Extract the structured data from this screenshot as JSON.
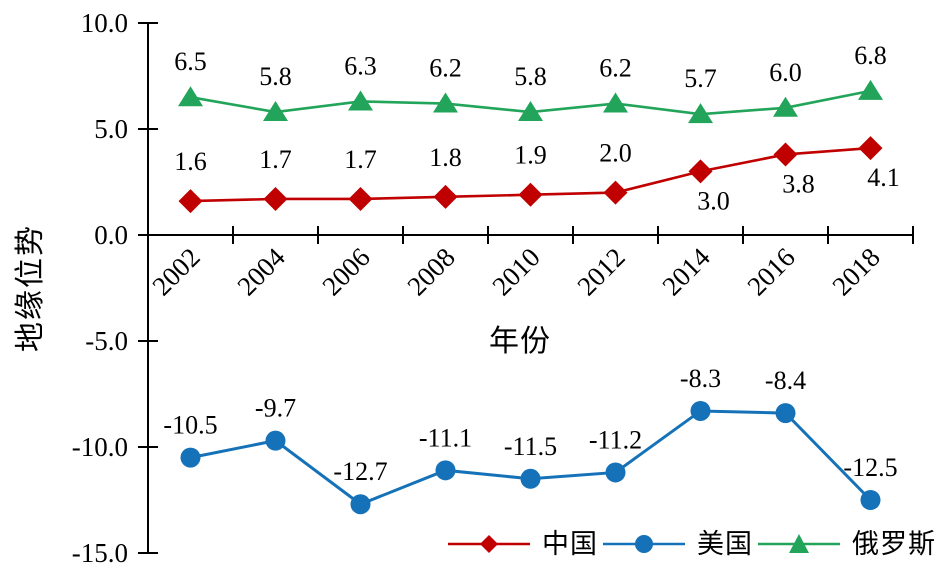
{
  "chart_data": {
    "type": "line",
    "title": "",
    "xlabel": "年份",
    "ylabel": "地缘位势",
    "x_categories": [
      "2002",
      "2004",
      "2006",
      "2008",
      "2010",
      "2012",
      "2014",
      "2016",
      "2018"
    ],
    "y_axis": {
      "ylim": [
        -15,
        10
      ],
      "ticks": [
        {
          "value": 10,
          "label": "10.0"
        },
        {
          "value": 5,
          "label": "5.0"
        },
        {
          "value": 0,
          "label": "0.0"
        },
        {
          "value": -5,
          "label": "-5.0"
        },
        {
          "value": -10,
          "label": "-10.0"
        },
        {
          "value": -15,
          "label": "-15.0"
        }
      ]
    },
    "grid": false,
    "legend_position": "bottom",
    "axis_color": "#000000",
    "background_color": "#ffffff",
    "series": [
      {
        "name": "中国",
        "color": "#C00000",
        "marker": "diamond",
        "values": [
          1.6,
          1.7,
          1.7,
          1.8,
          1.9,
          2.0,
          3.0,
          3.8,
          4.1
        ],
        "labels": [
          "1.6",
          "1.7",
          "1.7",
          "1.8",
          "1.9",
          "2.0",
          "3.0",
          "3.8",
          "4.1"
        ],
        "label_side": [
          "above",
          "above",
          "above",
          "above",
          "above",
          "above",
          "below",
          "below",
          "below"
        ]
      },
      {
        "name": "美国",
        "color": "#1572B8",
        "marker": "circle",
        "values": [
          -10.5,
          -9.7,
          -12.7,
          -11.1,
          -11.5,
          -11.2,
          -8.3,
          -8.4,
          -12.5
        ],
        "labels": [
          "-10.5",
          "-9.7",
          "-12.7",
          "-11.1",
          "-11.5",
          "-11.2",
          "-8.3",
          "-8.4",
          "-12.5"
        ],
        "label_side": [
          "above",
          "above",
          "above",
          "above",
          "above",
          "above",
          "above",
          "above",
          "above"
        ]
      },
      {
        "name": "俄罗斯",
        "color": "#22A45A",
        "marker": "triangle",
        "values": [
          6.5,
          5.8,
          6.3,
          6.2,
          5.8,
          6.2,
          5.7,
          6.0,
          6.8
        ],
        "labels": [
          "6.5",
          "5.8",
          "6.3",
          "6.2",
          "5.8",
          "6.2",
          "5.7",
          "6.0",
          "6.8"
        ],
        "label_side": [
          "above",
          "above",
          "above",
          "above",
          "above",
          "above",
          "above",
          "above",
          "above"
        ]
      }
    ]
  }
}
